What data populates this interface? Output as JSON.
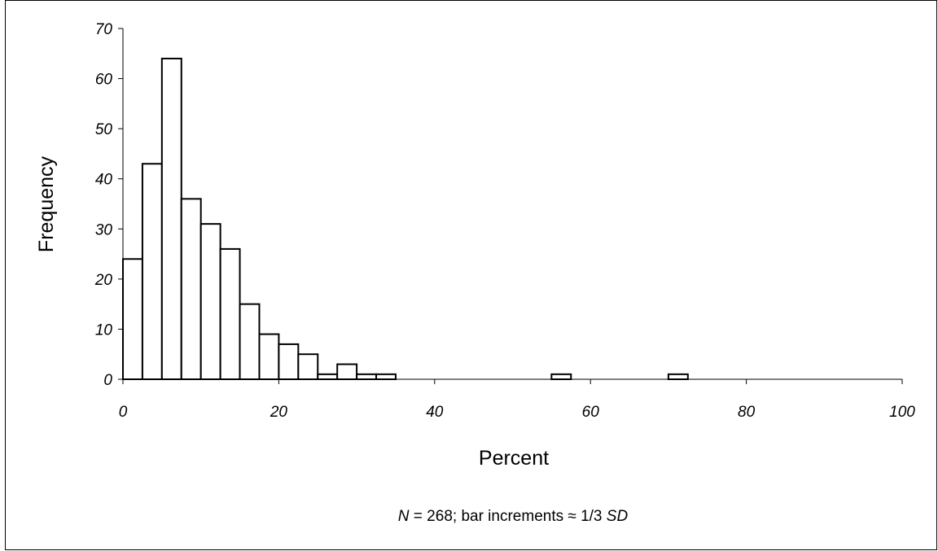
{
  "chart_data": {
    "type": "bar",
    "histogram": true,
    "x_bin_start": [
      0,
      2.5,
      5,
      7.5,
      10,
      12.5,
      15,
      17.5,
      20,
      22.5,
      25,
      27.5,
      30,
      32.5,
      35,
      37.5,
      40,
      42.5,
      45,
      47.5,
      50,
      52.5,
      55,
      57.5,
      60,
      62.5,
      65,
      67.5,
      70,
      72.5,
      75
    ],
    "bin_width": 2.5,
    "values": [
      24,
      43,
      64,
      36,
      31,
      26,
      15,
      9,
      7,
      5,
      1,
      3,
      1,
      1,
      0,
      0,
      0,
      0,
      0,
      0,
      0,
      0,
      1,
      0,
      0,
      0,
      0,
      0,
      1,
      0,
      0
    ],
    "xlabel": "Percent",
    "ylabel": "Frequency",
    "xlim": [
      0,
      100
    ],
    "ylim": [
      0,
      70
    ],
    "x_ticks": [
      "0",
      "20",
      "40",
      "60",
      "80",
      "100"
    ],
    "y_ticks": [
      "0",
      "10",
      "20",
      "30",
      "40",
      "50",
      "60",
      "70"
    ],
    "grid": false,
    "bar_fill": "#ffffff",
    "bar_stroke": "#000000"
  },
  "note": {
    "n_label": "N",
    "n_text": " = 268; bar increments ≈ 1/3 ",
    "sd_label": "SD"
  }
}
